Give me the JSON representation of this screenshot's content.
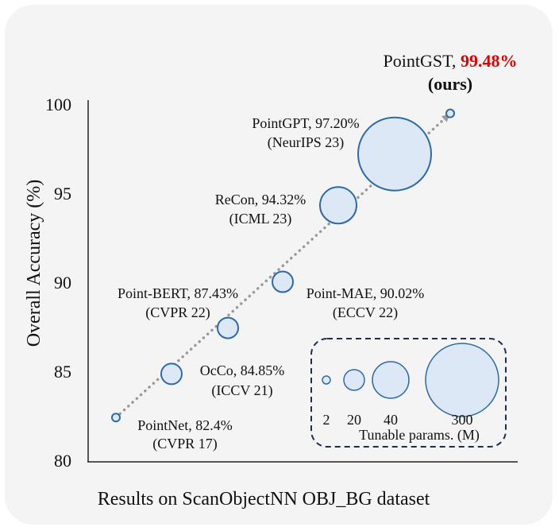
{
  "chart_data": {
    "type": "scatter",
    "subtype": "bubble",
    "caption": "Results on ScanObjectNN OBJ_BG dataset",
    "ylabel": "Overall Accuracy (%)",
    "xlabel": "",
    "ylim": [
      80,
      100
    ],
    "yticks": [
      80,
      85,
      90,
      95,
      100
    ],
    "grid": false,
    "trend_line": "dotted arrow",
    "points": [
      {
        "name": "PointNet",
        "acc_label": "82.4%",
        "venue": "(CVPR 17)",
        "y": 82.4,
        "params": 2
      },
      {
        "name": "OcCo",
        "acc_label": "84.85%",
        "venue": "(ICCV 21)",
        "y": 84.85,
        "params": 20
      },
      {
        "name": "Point-BERT",
        "acc_label": "87.43%",
        "venue": "(CVPR 22)",
        "y": 87.43,
        "params": 20
      },
      {
        "name": "Point-MAE",
        "acc_label": "90.02%",
        "venue": "(ECCV 22)",
        "y": 90.02,
        "params": 20
      },
      {
        "name": "ReCon",
        "acc_label": "94.32%",
        "venue": "(ICML 23)",
        "y": 94.32,
        "params": 40
      },
      {
        "name": "PointGPT",
        "acc_label": "97.20%",
        "venue": "(NeurIPS 23)",
        "y": 97.2,
        "params": 300
      },
      {
        "name": "PointGST",
        "acc_label": "99.48%",
        "venue": "(ours)",
        "y": 99.48,
        "params": 2
      }
    ],
    "legend": {
      "title": "Tunable params. (M)",
      "placement": "bottom-right",
      "sizes": [
        2,
        20,
        40,
        300
      ],
      "labels": [
        "2",
        "20",
        "40",
        "300"
      ]
    },
    "colors": {
      "bubble_fill": "#dce8f6",
      "bubble_stroke": "#2e6aa8",
      "highlight": "#e00000",
      "trend": "#9a9a9a",
      "legend_border": "#1f2d4a"
    }
  }
}
